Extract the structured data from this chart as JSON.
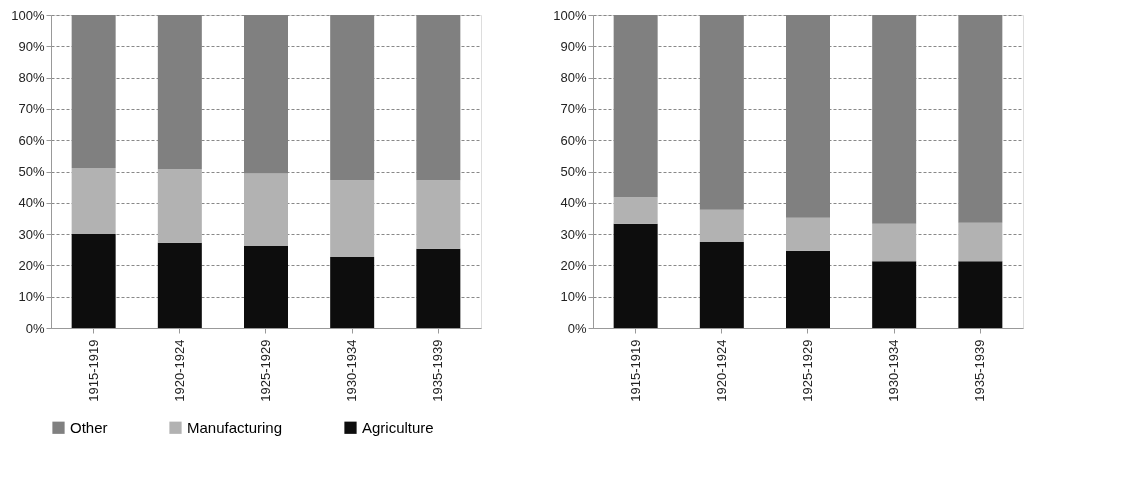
{
  "chart_data": [
    {
      "type": "bar",
      "stacked": true,
      "categories": [
        "1915-1919",
        "1920-1924",
        "1925-1929",
        "1930-1934",
        "1935-1939"
      ],
      "series": [
        {
          "name": "Agriculture",
          "color": "#0d0d0d",
          "values": [
            30.0,
            27.2,
            26.2,
            22.7,
            25.3
          ]
        },
        {
          "name": "Manufacturing",
          "color": "#b2b2b2",
          "values": [
            21.1,
            23.5,
            23.2,
            24.5,
            21.9
          ]
        },
        {
          "name": "Other",
          "color": "#808080",
          "values": [
            48.9,
            49.3,
            50.6,
            52.8,
            52.8
          ]
        }
      ],
      "ylim": [
        0,
        100
      ],
      "yticks": [
        {
          "value": 0,
          "label": "0%"
        },
        {
          "value": 10,
          "label": "10%"
        },
        {
          "value": 20,
          "label": "20%"
        },
        {
          "value": 30,
          "label": "30%"
        },
        {
          "value": 40,
          "label": "40%"
        },
        {
          "value": 50,
          "label": "50%"
        },
        {
          "value": 60,
          "label": "60%"
        },
        {
          "value": 70,
          "label": "70%"
        },
        {
          "value": 80,
          "label": "80%"
        },
        {
          "value": 90,
          "label": "90%"
        },
        {
          "value": 100,
          "label": "100%"
        }
      ],
      "grid": "y",
      "legend": "bottom"
    },
    {
      "type": "bar",
      "stacked": true,
      "categories": [
        "1915-1919",
        "1920-1924",
        "1925-1929",
        "1930-1934",
        "1935-1939"
      ],
      "series": [
        {
          "name": "Agriculture",
          "color": "#0d0d0d",
          "values": [
            33.3,
            27.5,
            24.7,
            21.3,
            21.3
          ]
        },
        {
          "name": "Manufacturing",
          "color": "#b2b2b2",
          "values": [
            8.5,
            10.3,
            10.5,
            12.0,
            12.3
          ]
        },
        {
          "name": "Other",
          "color": "#808080",
          "values": [
            58.2,
            62.2,
            64.8,
            66.7,
            66.4
          ]
        }
      ],
      "ylim": [
        0,
        100
      ],
      "yticks": [
        {
          "value": 0,
          "label": "0%"
        },
        {
          "value": 10,
          "label": "10%"
        },
        {
          "value": 20,
          "label": "20%"
        },
        {
          "value": 30,
          "label": "30%"
        },
        {
          "value": 40,
          "label": "40%"
        },
        {
          "value": 50,
          "label": "50%"
        },
        {
          "value": 60,
          "label": "60%"
        },
        {
          "value": 70,
          "label": "70%"
        },
        {
          "value": 80,
          "label": "80%"
        },
        {
          "value": 90,
          "label": "90%"
        },
        {
          "value": 100,
          "label": "100%"
        }
      ],
      "grid": "y",
      "legend": "bottom"
    }
  ]
}
